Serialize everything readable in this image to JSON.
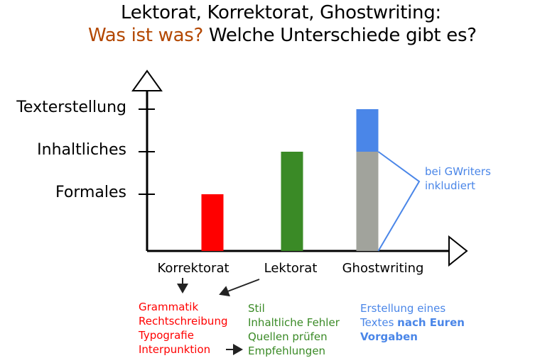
{
  "title": {
    "line1": "Lektorat, Korrektorat, Ghostwriting:",
    "line2_highlight": "Was ist was?",
    "line2_rest": " Welche Unterschiede gibt es?"
  },
  "colors": {
    "title_highlight": "#b34700",
    "korrektorat": "#ff0000",
    "lektorat": "#3a8a26",
    "ghost_base": "#a1a39c",
    "ghost_top": "#4a86e8",
    "axis": "#000000",
    "callout": "#4a86e8"
  },
  "chart_data": {
    "type": "bar",
    "categories": [
      "Korrektorat",
      "Lektorat",
      "Ghostwriting"
    ],
    "y_levels": [
      "Formales",
      "Inhaltliches",
      "Texterstellung"
    ],
    "ylim": [
      0,
      3.4
    ],
    "series": [
      {
        "values": [
          1,
          2,
          2
        ]
      },
      {
        "values": [
          0,
          0,
          1
        ]
      }
    ],
    "grid": false,
    "legend": "none"
  },
  "callout": {
    "line1": "bei GWriters",
    "line2": "inkludiert"
  },
  "notes": {
    "korrektorat": [
      "Grammatik",
      "Rechtschreibung",
      "Typografie",
      "Interpunktion"
    ],
    "lektorat": [
      "Stil",
      "Inhaltliche Fehler",
      "Quellen prüfen",
      "Empfehlungen"
    ],
    "ghostwriting": {
      "line1": "Erstellung eines",
      "line2_normal": "Textes ",
      "line2_bold": "nach Euren",
      "line3_bold": "Vorgaben"
    }
  }
}
